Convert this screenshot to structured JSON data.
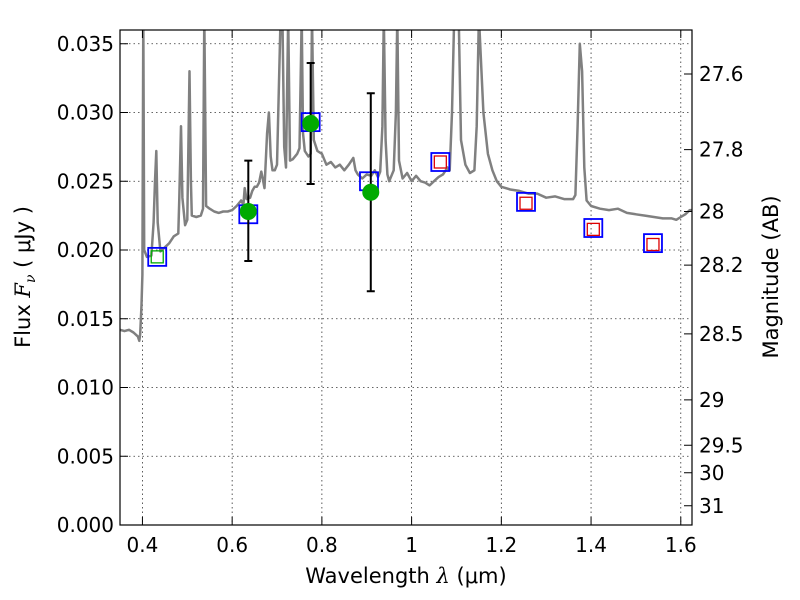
{
  "chart_data": {
    "type": "scatter",
    "xlabel_prefix": "Wavelength  ",
    "xlabel_symbol": "λ",
    "xlabel_unit": " (μm)",
    "ylabel_prefix": "Flux  ",
    "ylabel_symbol": "F",
    "ylabel_subscript": "ν",
    "ylabel_unit": "  ( μJy )",
    "y2label": "Magnitude (AB)",
    "xlim": [
      0.35,
      1.625
    ],
    "ylim": [
      0.0,
      0.036
    ],
    "grid": true,
    "x_ticks": [
      {
        "value": 0.4,
        "label": "0.4"
      },
      {
        "value": 0.6,
        "label": "0.6"
      },
      {
        "value": 0.8,
        "label": "0.8"
      },
      {
        "value": 1.0,
        "label": "1"
      },
      {
        "value": 1.2,
        "label": "1.2"
      },
      {
        "value": 1.4,
        "label": "1.4"
      },
      {
        "value": 1.6,
        "label": "1.6"
      }
    ],
    "y_ticks": [
      {
        "value": 0.0,
        "label": "0.000"
      },
      {
        "value": 0.005,
        "label": "0.005"
      },
      {
        "value": 0.01,
        "label": "0.010"
      },
      {
        "value": 0.015,
        "label": "0.015"
      },
      {
        "value": 0.02,
        "label": "0.020"
      },
      {
        "value": 0.025,
        "label": "0.025"
      },
      {
        "value": 0.03,
        "label": "0.030"
      },
      {
        "value": 0.035,
        "label": "0.035"
      }
    ],
    "y2_ticks": [
      {
        "flux": 0.0328,
        "label": "27.6"
      },
      {
        "flux": 0.0273,
        "label": "27.8"
      },
      {
        "flux": 0.0228,
        "label": "28"
      },
      {
        "flux": 0.0189,
        "label": "28.2"
      },
      {
        "flux": 0.0139,
        "label": "28.5"
      },
      {
        "flux": 0.0091,
        "label": "29"
      },
      {
        "flux": 0.0058,
        "label": "29.5"
      },
      {
        "flux": 0.0038,
        "label": "30"
      },
      {
        "flux": 0.0014,
        "label": "31"
      }
    ],
    "series": [
      {
        "kind": "spectrum",
        "color": "#808080",
        "points": [
          [
            0.35,
            0.0142
          ],
          [
            0.36,
            0.0141
          ],
          [
            0.37,
            0.0142
          ],
          [
            0.38,
            0.014
          ],
          [
            0.39,
            0.0137
          ],
          [
            0.393,
            0.0134
          ],
          [
            0.395,
            0.0139
          ],
          [
            0.398,
            0.016
          ],
          [
            0.4,
            0.0182
          ],
          [
            0.402,
            0.037
          ],
          [
            0.404,
            0.02
          ],
          [
            0.41,
            0.0195
          ],
          [
            0.42,
            0.0196
          ],
          [
            0.425,
            0.022
          ],
          [
            0.428,
            0.025
          ],
          [
            0.431,
            0.0272
          ],
          [
            0.434,
            0.022
          ],
          [
            0.44,
            0.0199
          ],
          [
            0.45,
            0.0202
          ],
          [
            0.46,
            0.0205
          ],
          [
            0.47,
            0.021
          ],
          [
            0.48,
            0.0212
          ],
          [
            0.482,
            0.0235
          ],
          [
            0.486,
            0.029
          ],
          [
            0.489,
            0.0238
          ],
          [
            0.495,
            0.0218
          ],
          [
            0.5,
            0.0222
          ],
          [
            0.505,
            0.033
          ],
          [
            0.508,
            0.025
          ],
          [
            0.51,
            0.0225
          ],
          [
            0.52,
            0.0224
          ],
          [
            0.53,
            0.0225
          ],
          [
            0.535,
            0.023
          ],
          [
            0.538,
            0.037
          ],
          [
            0.542,
            0.0232
          ],
          [
            0.55,
            0.023
          ],
          [
            0.56,
            0.0228
          ],
          [
            0.57,
            0.0227
          ],
          [
            0.58,
            0.0228
          ],
          [
            0.59,
            0.0228
          ],
          [
            0.6,
            0.0229
          ],
          [
            0.61,
            0.0232
          ],
          [
            0.62,
            0.0236
          ],
          [
            0.625,
            0.0233
          ],
          [
            0.628,
            0.0245
          ],
          [
            0.632,
            0.0237
          ],
          [
            0.64,
            0.0238
          ],
          [
            0.645,
            0.0243
          ],
          [
            0.65,
            0.0246
          ],
          [
            0.655,
            0.0246
          ],
          [
            0.66,
            0.0249
          ],
          [
            0.665,
            0.0257
          ],
          [
            0.668,
            0.0252
          ],
          [
            0.672,
            0.0245
          ],
          [
            0.678,
            0.0285
          ],
          [
            0.682,
            0.03
          ],
          [
            0.686,
            0.0268
          ],
          [
            0.69,
            0.0258
          ],
          [
            0.695,
            0.0258
          ],
          [
            0.7,
            0.0262
          ],
          [
            0.708,
            0.037
          ],
          [
            0.712,
            0.037
          ],
          [
            0.716,
            0.0275
          ],
          [
            0.72,
            0.026
          ],
          [
            0.725,
            0.037
          ],
          [
            0.729,
            0.0265
          ],
          [
            0.735,
            0.0266
          ],
          [
            0.745,
            0.027
          ],
          [
            0.75,
            0.0274
          ],
          [
            0.755,
            0.037
          ],
          [
            0.758,
            0.0285
          ],
          [
            0.762,
            0.0272
          ],
          [
            0.77,
            0.0268
          ],
          [
            0.775,
            0.027
          ],
          [
            0.778,
            0.037
          ],
          [
            0.782,
            0.028
          ],
          [
            0.79,
            0.0272
          ],
          [
            0.8,
            0.027
          ],
          [
            0.81,
            0.0262
          ],
          [
            0.82,
            0.0264
          ],
          [
            0.83,
            0.026
          ],
          [
            0.84,
            0.0262
          ],
          [
            0.85,
            0.0258
          ],
          [
            0.86,
            0.0262
          ],
          [
            0.87,
            0.0267
          ],
          [
            0.875,
            0.0258
          ],
          [
            0.88,
            0.0255
          ],
          [
            0.89,
            0.0252
          ],
          [
            0.9,
            0.0255
          ],
          [
            0.91,
            0.0254
          ],
          [
            0.918,
            0.0258
          ],
          [
            0.925,
            0.0253
          ],
          [
            0.93,
            0.0257
          ],
          [
            0.935,
            0.029
          ],
          [
            0.938,
            0.037
          ],
          [
            0.942,
            0.028
          ],
          [
            0.946,
            0.0255
          ],
          [
            0.95,
            0.025
          ],
          [
            0.96,
            0.0258
          ],
          [
            0.965,
            0.03
          ],
          [
            0.968,
            0.037
          ],
          [
            0.972,
            0.0265
          ],
          [
            0.98,
            0.0252
          ],
          [
            0.99,
            0.0256
          ],
          [
            1.0,
            0.025
          ],
          [
            1.01,
            0.0254
          ],
          [
            1.02,
            0.025
          ],
          [
            1.03,
            0.0249
          ],
          [
            1.04,
            0.0247
          ],
          [
            1.05,
            0.025
          ],
          [
            1.06,
            0.0253
          ],
          [
            1.07,
            0.0255
          ],
          [
            1.08,
            0.026
          ],
          [
            1.085,
            0.0258
          ],
          [
            1.09,
            0.03
          ],
          [
            1.095,
            0.037
          ],
          [
            1.105,
            0.037
          ],
          [
            1.11,
            0.028
          ],
          [
            1.12,
            0.0262
          ],
          [
            1.13,
            0.0256
          ],
          [
            1.14,
            0.0258
          ],
          [
            1.145,
            0.029
          ],
          [
            1.15,
            0.037
          ],
          [
            1.16,
            0.03
          ],
          [
            1.17,
            0.027
          ],
          [
            1.18,
            0.0258
          ],
          [
            1.19,
            0.025
          ],
          [
            1.2,
            0.0246
          ],
          [
            1.22,
            0.0244
          ],
          [
            1.24,
            0.0243
          ],
          [
            1.26,
            0.0241
          ],
          [
            1.28,
            0.0241
          ],
          [
            1.3,
            0.0238
          ],
          [
            1.32,
            0.0239
          ],
          [
            1.34,
            0.0237
          ],
          [
            1.36,
            0.0237
          ],
          [
            1.365,
            0.024
          ],
          [
            1.37,
            0.029
          ],
          [
            1.375,
            0.035
          ],
          [
            1.38,
            0.033
          ],
          [
            1.385,
            0.026
          ],
          [
            1.39,
            0.0236
          ],
          [
            1.4,
            0.0232
          ],
          [
            1.42,
            0.023
          ],
          [
            1.44,
            0.0229
          ],
          [
            1.46,
            0.023
          ],
          [
            1.48,
            0.0227
          ],
          [
            1.5,
            0.0226
          ],
          [
            1.52,
            0.0225
          ],
          [
            1.54,
            0.0224
          ],
          [
            1.56,
            0.0223
          ],
          [
            1.58,
            0.0223
          ],
          [
            1.59,
            0.0222
          ],
          [
            1.6,
            0.0224
          ],
          [
            1.61,
            0.0226
          ],
          [
            1.62,
            0.0229
          ],
          [
            1.625,
            0.0229
          ]
        ]
      },
      {
        "kind": "measured",
        "color": "#00aa00",
        "points": [
          {
            "x": 0.636,
            "y": 0.0228,
            "lo": 0.0192,
            "hi": 0.0265
          },
          {
            "x": 0.775,
            "y": 0.0292,
            "lo": 0.0248,
            "hi": 0.0336
          },
          {
            "x": 0.909,
            "y": 0.0242,
            "lo": 0.017,
            "hi": 0.0314
          }
        ]
      },
      {
        "kind": "model_photometry",
        "color": "#0000ff",
        "points": [
          {
            "x": 0.433,
            "y": 0.0195
          },
          {
            "x": 0.636,
            "y": 0.0226
          },
          {
            "x": 0.775,
            "y": 0.0293
          },
          {
            "x": 0.905,
            "y": 0.025
          },
          {
            "x": 1.064,
            "y": 0.0264
          },
          {
            "x": 1.255,
            "y": 0.0235
          },
          {
            "x": 1.405,
            "y": 0.0216
          },
          {
            "x": 1.538,
            "y": 0.0205
          }
        ]
      },
      {
        "kind": "upper_limit",
        "color": "#dd0000",
        "points": [
          {
            "x": 1.064,
            "y": 0.0264
          },
          {
            "x": 1.255,
            "y": 0.0234
          },
          {
            "x": 1.405,
            "y": 0.0215
          },
          {
            "x": 1.538,
            "y": 0.0204
          }
        ]
      },
      {
        "kind": "green_square",
        "color": "#00aa00",
        "points": [
          {
            "x": 0.433,
            "y": 0.0195
          }
        ]
      }
    ]
  }
}
